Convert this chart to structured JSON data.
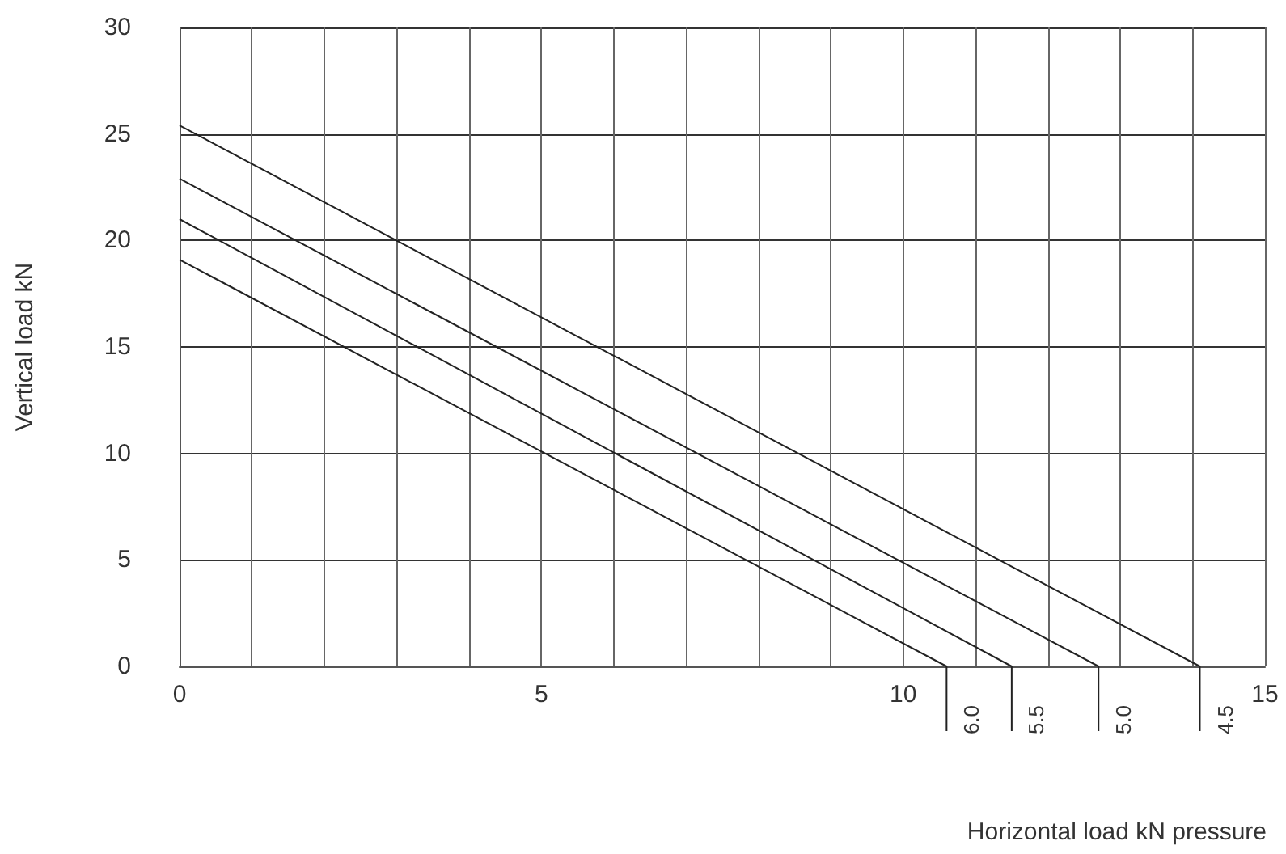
{
  "chart_data": {
    "type": "line",
    "xlabel": "Horizontal load kN pressure",
    "ylabel": "Vertical load kN",
    "xlim": [
      0,
      15
    ],
    "xticks": [
      0,
      {
        "value": 1,
        "label": null
      },
      {
        "value": 2,
        "label": null
      },
      {
        "value": 3,
        "label": null
      },
      {
        "value": 4,
        "label": null
      },
      5,
      {
        "value": 6,
        "label": null
      },
      {
        "value": 7,
        "label": null
      },
      {
        "value": 8,
        "label": null
      },
      {
        "value": 9,
        "label": null
      },
      10,
      {
        "value": 11,
        "label": null
      },
      {
        "value": 12,
        "label": null
      },
      {
        "value": 13,
        "label": null
      },
      {
        "value": 14,
        "label": null
      },
      15
    ],
    "ylim": [
      0,
      30
    ],
    "yticks": [
      0,
      5,
      10,
      15,
      20,
      25,
      30
    ],
    "grid": true,
    "legend": false,
    "marker": "none",
    "line_style": "solid",
    "series": [
      {
        "name": "6.0",
        "color": "#222222",
        "x": [
          0,
          10.6
        ],
        "values": [
          19.1,
          0
        ]
      },
      {
        "name": "5.5",
        "color": "#222222",
        "x": [
          0,
          11.5
        ],
        "values": [
          21.0,
          0
        ]
      },
      {
        "name": "5.0",
        "color": "#222222",
        "x": [
          0,
          12.7
        ],
        "values": [
          22.9,
          0
        ]
      },
      {
        "name": "4.5",
        "color": "#222222",
        "x": [
          0,
          14.1
        ],
        "values": [
          25.4,
          0
        ]
      }
    ]
  }
}
